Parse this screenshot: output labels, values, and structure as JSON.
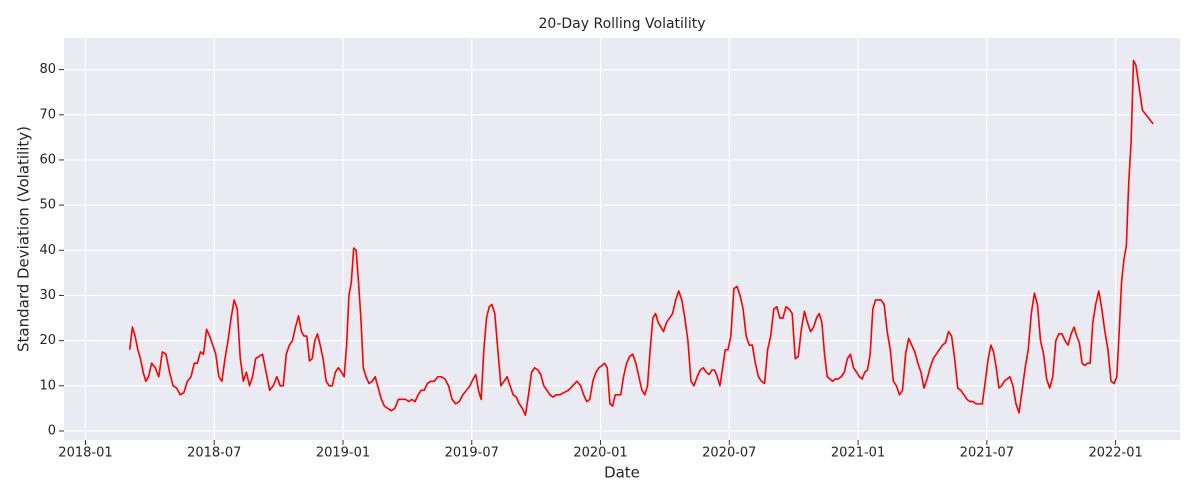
{
  "chart_data": {
    "type": "line",
    "title": "20-Day Rolling Volatility",
    "x_label": "Date",
    "y_label": "Standard Deviation (Volatility)",
    "color": "#ff0000",
    "grid": true,
    "xlim": [
      "2017-12",
      "2022-04"
    ],
    "xticks": [
      "2018-01",
      "2018-07",
      "2019-01",
      "2019-07",
      "2020-01",
      "2020-07",
      "2021-01",
      "2021-07",
      "2022-01"
    ],
    "ylim": [
      -2,
      87
    ],
    "yticks": [
      0,
      10,
      20,
      30,
      40,
      50,
      60,
      70,
      80
    ],
    "x": [
      "2018-03",
      "2018-03",
      "2018-03",
      "2018-03",
      "2018-03",
      "2018-03",
      "2018-03",
      "2018-03",
      "2018-04",
      "2018-04",
      "2018-04",
      "2018-04",
      "2018-04",
      "2018-04",
      "2018-05",
      "2018-05",
      "2018-05",
      "2018-05",
      "2018-05",
      "2018-05",
      "2018-06",
      "2018-06",
      "2018-06",
      "2018-06",
      "2018-06",
      "2018-06",
      "2018-06",
      "2018-07",
      "2018-07",
      "2018-07",
      "2018-07",
      "2018-07",
      "2018-07",
      "2018-07",
      "2018-08",
      "2018-08",
      "2018-08",
      "2018-08",
      "2018-08",
      "2018-08",
      "2018-08",
      "2018-09",
      "2018-09",
      "2018-09",
      "2018-09",
      "2018-09",
      "2018-09",
      "2018-10",
      "2018-10",
      "2018-10",
      "2018-10",
      "2018-10",
      "2018-10",
      "2018-10",
      "2018-11",
      "2018-11",
      "2018-11",
      "2018-11",
      "2018-11",
      "2018-11",
      "2018-11",
      "2018-11",
      "2018-12",
      "2018-12",
      "2018-12",
      "2018-12",
      "2018-12",
      "2018-12",
      "2018-12",
      "2019-01",
      "2019-01",
      "2019-01",
      "2019-01",
      "2019-01",
      "2019-01",
      "2019-01",
      "2019-01",
      "2019-01",
      "2019-02",
      "2019-02",
      "2019-02",
      "2019-02",
      "2019-02",
      "2019-02",
      "2019-02",
      "2019-03",
      "2019-03",
      "2019-03",
      "2019-03",
      "2019-03",
      "2019-03",
      "2019-04",
      "2019-04",
      "2019-04",
      "2019-04",
      "2019-04",
      "2019-04",
      "2019-04",
      "2019-05",
      "2019-05",
      "2019-05",
      "2019-05",
      "2019-05",
      "2019-05",
      "2019-06",
      "2019-06",
      "2019-06",
      "2019-06",
      "2019-06",
      "2019-06",
      "2019-07",
      "2019-07",
      "2019-07",
      "2019-07",
      "2019-07",
      "2019-07",
      "2019-07",
      "2019-07",
      "2019-08",
      "2019-08",
      "2019-08",
      "2019-08",
      "2019-08",
      "2019-08",
      "2019-08",
      "2019-09",
      "2019-09",
      "2019-09",
      "2019-09",
      "2019-09",
      "2019-09",
      "2019-09",
      "2019-10",
      "2019-10",
      "2019-10",
      "2019-10",
      "2019-10",
      "2019-10",
      "2019-10",
      "2019-11",
      "2019-11",
      "2019-11",
      "2019-11",
      "2019-11",
      "2019-12",
      "2019-12",
      "2019-12",
      "2019-12",
      "2019-12",
      "2019-12",
      "2019-12",
      "2020-01",
      "2020-01",
      "2020-01",
      "2020-01",
      "2020-01",
      "2020-01",
      "2020-01",
      "2020-01",
      "2020-02",
      "2020-02",
      "2020-02",
      "2020-02",
      "2020-02",
      "2020-02",
      "2020-02",
      "2020-03",
      "2020-03",
      "2020-03",
      "2020-03",
      "2020-03",
      "2020-03",
      "2020-03",
      "2020-03",
      "2020-04",
      "2020-04",
      "2020-04",
      "2020-04",
      "2020-04",
      "2020-04",
      "2020-04",
      "2020-05",
      "2020-05",
      "2020-05",
      "2020-05",
      "2020-05",
      "2020-05",
      "2020-05",
      "2020-06",
      "2020-06",
      "2020-06",
      "2020-06",
      "2020-06",
      "2020-06",
      "2020-06",
      "2020-06",
      "2020-07",
      "2020-07",
      "2020-07",
      "2020-07",
      "2020-07",
      "2020-07",
      "2020-07",
      "2020-08",
      "2020-08",
      "2020-08",
      "2020-08",
      "2020-08",
      "2020-08",
      "2020-08",
      "2020-09",
      "2020-09",
      "2020-09",
      "2020-09",
      "2020-09",
      "2020-09",
      "2020-09",
      "2020-10",
      "2020-10",
      "2020-10",
      "2020-10",
      "2020-10",
      "2020-10",
      "2020-10",
      "2020-11",
      "2020-11",
      "2020-11",
      "2020-11",
      "2020-11",
      "2020-11",
      "2020-11",
      "2020-11",
      "2020-12",
      "2020-12",
      "2020-12",
      "2020-12",
      "2020-12",
      "2020-12",
      "2020-12",
      "2021-01",
      "2021-01",
      "2021-01",
      "2021-01",
      "2021-01",
      "2021-01",
      "2021-01",
      "2021-01",
      "2021-02",
      "2021-02",
      "2021-02",
      "2021-02",
      "2021-02",
      "2021-02",
      "2021-02",
      "2021-03",
      "2021-03",
      "2021-03",
      "2021-03",
      "2021-03",
      "2021-03",
      "2021-03",
      "2021-04",
      "2021-04",
      "2021-04",
      "2021-04",
      "2021-04",
      "2021-04",
      "2021-04",
      "2021-05",
      "2021-05",
      "2021-05",
      "2021-05",
      "2021-05",
      "2021-05",
      "2021-05",
      "2021-06",
      "2021-06",
      "2021-06",
      "2021-06",
      "2021-06",
      "2021-06",
      "2021-06",
      "2021-07",
      "2021-07",
      "2021-07",
      "2021-07",
      "2021-07",
      "2021-07",
      "2021-07",
      "2021-07",
      "2021-08",
      "2021-08",
      "2021-08",
      "2021-08",
      "2021-08",
      "2021-08",
      "2021-08",
      "2021-09",
      "2021-09",
      "2021-09",
      "2021-09",
      "2021-09",
      "2021-09",
      "2021-09",
      "2021-10",
      "2021-10",
      "2021-10",
      "2021-10",
      "2021-10",
      "2021-10",
      "2021-10",
      "2021-11",
      "2021-11",
      "2021-11",
      "2021-11",
      "2021-11",
      "2021-11",
      "2021-11",
      "2021-11",
      "2021-12",
      "2021-12",
      "2021-12",
      "2021-12",
      "2021-12",
      "2021-12",
      "2021-12",
      "2022-01",
      "2022-01",
      "2022-01",
      "2022-01",
      "2022-01",
      "2022-01",
      "2022-01",
      "2022-01",
      "2022-01",
      "2022-02",
      "2022-02"
    ],
    "values": [
      18,
      23,
      21,
      18,
      16,
      13,
      11,
      12,
      15,
      14,
      12,
      17.5,
      17,
      13,
      10,
      9.5,
      8,
      8.5,
      11,
      12,
      15,
      15,
      17.5,
      17,
      22.5,
      21,
      19,
      17,
      12,
      11,
      16,
      20,
      25,
      29,
      27,
      16,
      11,
      13,
      10,
      12,
      16,
      16.5,
      17,
      13,
      9,
      10,
      12,
      10,
      10,
      17,
      19,
      20,
      23,
      25.5,
      22,
      21,
      21,
      15.5,
      16,
      20,
      21.5,
      19,
      16,
      11,
      10,
      10,
      13,
      14,
      13,
      12,
      19,
      30,
      33,
      40.5,
      40,
      33,
      25,
      14,
      12,
      10.5,
      11,
      12,
      9.5,
      7,
      5.5,
      5,
      4.5,
      5,
      7,
      7,
      7,
      6.5,
      7,
      6.5,
      8,
      9,
      9,
      10.5,
      11,
      11,
      12,
      12,
      11.5,
      10,
      7,
      6,
      6.5,
      8,
      9,
      10,
      11.5,
      12.5,
      9,
      7,
      18,
      25,
      27.5,
      28,
      26,
      18,
      10,
      11,
      12,
      10,
      8,
      7.5,
      6,
      5,
      3.5,
      8,
      13,
      14,
      13.5,
      12.5,
      10,
      9,
      8,
      7.5,
      8,
      8,
      8.5,
      9,
      10,
      11,
      10,
      8,
      6.5,
      7,
      11,
      13,
      14,
      14.5,
      15,
      14,
      6,
      5.5,
      8,
      8,
      8,
      12,
      15,
      16.5,
      17,
      15,
      12,
      9,
      8,
      10,
      18,
      25,
      26,
      24,
      23,
      22,
      24,
      25,
      26,
      29,
      31,
      29,
      25,
      20,
      11,
      10,
      12,
      13.5,
      14,
      13,
      12.5,
      13.5,
      13.5,
      12,
      10,
      14,
      18,
      18,
      21,
      31.5,
      32,
      30,
      27,
      21,
      19,
      19,
      15,
      12,
      11,
      10.5,
      18,
      21,
      27,
      27.5,
      25,
      25,
      27.5,
      27,
      26,
      16,
      16.5,
      22.5,
      26.5,
      24,
      22,
      23,
      25,
      26,
      24,
      17,
      12,
      11.5,
      11,
      11.5,
      11.5,
      12,
      13,
      16,
      17,
      14,
      13,
      12,
      11.5,
      13,
      13.5,
      17,
      27,
      29,
      29,
      29,
      28,
      22,
      18,
      11,
      10,
      8,
      9,
      17,
      20.5,
      19,
      17.5,
      15,
      13,
      9.5,
      11.5,
      14,
      16,
      17,
      18,
      19,
      19.5,
      22,
      21,
      16,
      9.5,
      9,
      8,
      7,
      6.5,
      6.5,
      6,
      6,
      6,
      11,
      16,
      19,
      17.5,
      14,
      9.5,
      10,
      11,
      11.5,
      12,
      10,
      6,
      4,
      9,
      14,
      18,
      26,
      30.5,
      28,
      20,
      17,
      11.5,
      9.5,
      12,
      20,
      21.5,
      21.5,
      20,
      19,
      21.5,
      23,
      21,
      19.5,
      15,
      14.5,
      15,
      15,
      24,
      28,
      31,
      27,
      22,
      18,
      11,
      10.5,
      12,
      22,
      33,
      38,
      41,
      55,
      64,
      82,
      81,
      71,
      68
    ]
  }
}
